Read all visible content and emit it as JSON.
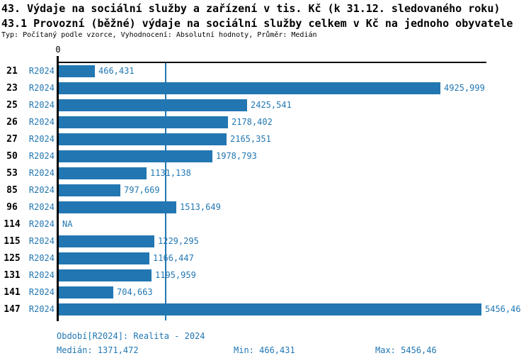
{
  "header": {
    "title": "43. Výdaje na sociální služby a zařízení v tis. Kč (k 31.12. sledovaného roku)",
    "subtitle": "43.1 Provozní (běžné) výdaje na sociální služby celkem v Kč na jednoho obyvatele",
    "meta": "Typ: Počítaný podle vzorce, Vyhodnocení: Absolutní hodnoty, Průměr: Medián"
  },
  "chart_data": {
    "type": "bar",
    "orientation": "horizontal",
    "title": "43. Výdaje na sociální služby a zařízení v tis. Kč (k 31.12. sledovaného roku)",
    "subtitle": "43.1 Provozní (běžné) výdaje na sociální služby celkem v Kč na jednoho obyvatele",
    "categories": [
      "21",
      "23",
      "25",
      "26",
      "27",
      "50",
      "53",
      "85",
      "96",
      "114",
      "115",
      "125",
      "131",
      "141",
      "147"
    ],
    "series_name": "R2024",
    "values": [
      466.431,
      4925.999,
      2425.541,
      2178.402,
      2165.351,
      1978.793,
      1131.138,
      797.669,
      1513.649,
      null,
      1229.295,
      1166.447,
      1195.959,
      704.663,
      5456.46
    ],
    "value_labels": [
      "466,431",
      "4925,999",
      "2425,541",
      "2178,402",
      "2165,351",
      "1978,793",
      "1131,138",
      "797,669",
      "1513,649",
      "NA",
      "1229,295",
      "1166,447",
      "1195,959",
      "704,663",
      "5456,46"
    ],
    "x_tick_labels": [
      "0"
    ],
    "xlim": [
      0,
      5525
    ],
    "median_value": 1371.472,
    "grid": false,
    "legend_position": "none",
    "colors": {
      "bar": "#2277b2",
      "accent_text": "#2277b2",
      "axis": "#000000"
    }
  },
  "footer": {
    "period": "Období[R2024]: Realita - 2024",
    "median": "Medián: 1371,472",
    "min": "Min: 466,431",
    "max": "Max: 5456,46"
  }
}
